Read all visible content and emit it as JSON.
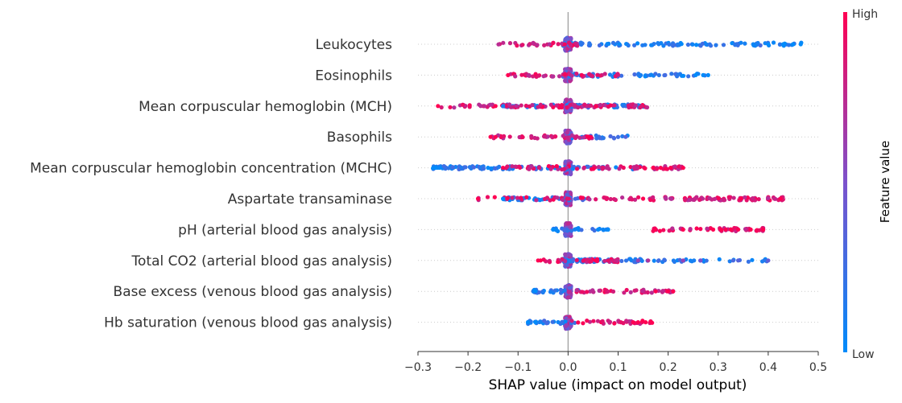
{
  "chart_data": {
    "type": "scatter",
    "subtype": "shap-beeswarm",
    "title": "",
    "xlabel": "SHAP value (impact on model output)",
    "ylabel": "",
    "xlim": [
      -0.3,
      0.5
    ],
    "x_ticks": [
      -0.3,
      -0.2,
      -0.1,
      0.0,
      0.1,
      0.2,
      0.3,
      0.4,
      0.5
    ],
    "x_tick_labels": [
      "−0.3",
      "−0.2",
      "−0.1",
      "0.0",
      "0.1",
      "0.2",
      "0.3",
      "0.4",
      "0.5"
    ],
    "reference_line_x": 0,
    "grid": false,
    "colorbar": {
      "label": "Feature value",
      "high_label": "High",
      "low_label": "Low",
      "low_color": "#008bfb",
      "mid_color": "#7c52cc",
      "high_color": "#ff0052",
      "position": "right"
    },
    "features": [
      {
        "name": "Leukocytes",
        "min": -0.14,
        "max": 0.47,
        "low_range": [
          -0.01,
          0.47
        ],
        "high_range": [
          -0.14,
          0.02
        ],
        "outliers": [
          {
            "x": 0.43,
            "v": 0.0
          },
          {
            "x": 0.45,
            "v": 0.0
          },
          {
            "x": 0.465,
            "v": 0.0
          },
          {
            "x": 0.4,
            "v": 0.0
          },
          {
            "x": 0.37,
            "v": 0.05
          }
        ]
      },
      {
        "name": "Eosinophils",
        "min": -0.12,
        "max": 0.28,
        "low_range": [
          -0.01,
          0.28
        ],
        "high_range": [
          -0.12,
          0.1
        ],
        "outliers": [
          {
            "x": 0.28,
            "v": 0.0
          },
          {
            "x": 0.27,
            "v": 0.0
          },
          {
            "x": 0.255,
            "v": 0.0
          },
          {
            "x": -0.12,
            "v": 1.0
          }
        ]
      },
      {
        "name": "Mean corpuscular hemoglobin (MCH)",
        "min": -0.26,
        "max": 0.16,
        "low_range": [
          -0.13,
          0.16
        ],
        "high_range": [
          -0.26,
          0.16
        ],
        "outliers": [
          {
            "x": -0.26,
            "v": 1.0
          },
          {
            "x": -0.145,
            "v": 1.0
          },
          {
            "x": -0.13,
            "v": 0.1
          }
        ]
      },
      {
        "name": "Basophils",
        "min": -0.16,
        "max": 0.12,
        "low_range": [
          0.0,
          0.12
        ],
        "high_range": [
          -0.16,
          0.05
        ],
        "outliers": [
          {
            "x": -0.155,
            "v": 1.0
          },
          {
            "x": -0.145,
            "v": 1.0
          },
          {
            "x": 0.115,
            "v": 0.35
          }
        ]
      },
      {
        "name": "Mean corpuscular hemoglobin concentration (MCHC)",
        "min": -0.27,
        "max": 0.23,
        "low_range": [
          -0.27,
          0.15
        ],
        "high_range": [
          -0.13,
          0.23
        ],
        "outliers": [
          {
            "x": -0.265,
            "v": 0.0
          },
          {
            "x": -0.16,
            "v": 0.0
          },
          {
            "x": -0.13,
            "v": 1.0
          },
          {
            "x": 0.17,
            "v": 1.0
          },
          {
            "x": 0.185,
            "v": 1.0
          },
          {
            "x": 0.205,
            "v": 1.0
          },
          {
            "x": 0.23,
            "v": 1.0
          }
        ]
      },
      {
        "name": "Aspartate transaminase",
        "min": -0.18,
        "max": 0.43,
        "low_range": [
          -0.13,
          0.05
        ],
        "high_range": [
          -0.18,
          0.43
        ],
        "outliers": [
          {
            "x": -0.18,
            "v": 1.0
          },
          {
            "x": -0.13,
            "v": 0.0
          },
          {
            "x": 0.15,
            "v": 1.0
          },
          {
            "x": 0.345,
            "v": 1.0
          },
          {
            "x": 0.425,
            "v": 1.0
          }
        ]
      },
      {
        "name": "pH (arterial blood gas analysis)",
        "min": -0.03,
        "max": 0.39,
        "low_range": [
          -0.03,
          0.08
        ],
        "high_range": [
          0.17,
          0.39
        ],
        "outliers": [
          {
            "x": -0.03,
            "v": 0.0
          },
          {
            "x": 0.06,
            "v": 0.0
          },
          {
            "x": 0.07,
            "v": 0.05
          },
          {
            "x": 0.08,
            "v": 0.0
          },
          {
            "x": 0.175,
            "v": 1.0
          },
          {
            "x": 0.23,
            "v": 1.0
          },
          {
            "x": 0.29,
            "v": 1.0
          },
          {
            "x": 0.305,
            "v": 1.0
          },
          {
            "x": 0.315,
            "v": 1.0
          },
          {
            "x": 0.325,
            "v": 1.0
          },
          {
            "x": 0.34,
            "v": 1.0
          },
          {
            "x": 0.365,
            "v": 1.0
          },
          {
            "x": 0.39,
            "v": 1.0
          }
        ]
      },
      {
        "name": "Total CO2 (arterial blood gas analysis)",
        "min": -0.06,
        "max": 0.4,
        "low_range": [
          -0.01,
          0.4
        ],
        "high_range": [
          -0.06,
          0.1
        ],
        "outliers": [
          {
            "x": -0.06,
            "v": 1.0
          },
          {
            "x": -0.055,
            "v": 1.0
          },
          {
            "x": 0.055,
            "v": 1.0
          },
          {
            "x": 0.08,
            "v": 0.9
          },
          {
            "x": 0.09,
            "v": 0.85
          },
          {
            "x": 0.095,
            "v": 0.8
          },
          {
            "x": 0.14,
            "v": 0.6
          },
          {
            "x": 0.16,
            "v": 0.7
          },
          {
            "x": 0.23,
            "v": 0.6
          },
          {
            "x": 0.265,
            "v": 0.5
          },
          {
            "x": 0.33,
            "v": 0.3
          },
          {
            "x": 0.34,
            "v": 0.35
          },
          {
            "x": 0.4,
            "v": 0.4
          }
        ]
      },
      {
        "name": "Base excess (venous blood gas analysis)",
        "min": -0.07,
        "max": 0.21,
        "low_range": [
          -0.07,
          0.03
        ],
        "high_range": [
          0.0,
          0.21
        ],
        "outliers": [
          {
            "x": -0.065,
            "v": 0.0
          },
          {
            "x": 0.175,
            "v": 1.0
          },
          {
            "x": 0.2,
            "v": 1.0
          },
          {
            "x": 0.21,
            "v": 1.0
          }
        ]
      },
      {
        "name": "Hb saturation (venous blood gas analysis)",
        "min": -0.08,
        "max": 0.17,
        "low_range": [
          -0.08,
          0.04
        ],
        "high_range": [
          0.0,
          0.17
        ],
        "outliers": [
          {
            "x": -0.08,
            "v": 0.0
          },
          {
            "x": -0.065,
            "v": 0.0
          },
          {
            "x": 0.13,
            "v": 1.0
          },
          {
            "x": 0.14,
            "v": 1.0
          },
          {
            "x": 0.155,
            "v": 1.0
          },
          {
            "x": 0.165,
            "v": 1.0
          }
        ]
      }
    ]
  }
}
